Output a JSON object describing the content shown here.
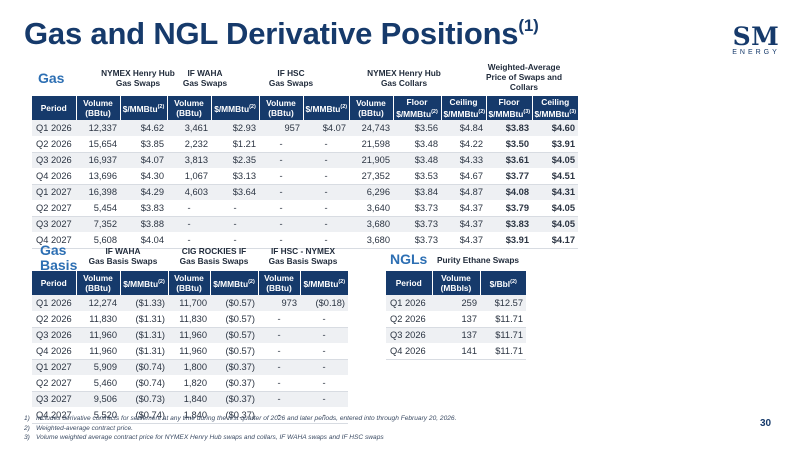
{
  "title": "Gas and NGL Derivative Positions",
  "title_sup": "(1)",
  "logo": {
    "name": "SM",
    "sub": "ENERGY"
  },
  "gas": {
    "label": "Gas",
    "groups": [
      "NYMEX Henry Hub\nGas Swaps",
      "IF WAHA\nGas Swaps",
      "IF HSC\nGas Swaps",
      "NYMEX Henry Hub\nGas Collars",
      "Weighted-Average\nPrice of Swaps and\nCollars"
    ],
    "headers": [
      "Period",
      "Volume\n(BBtu)",
      "$/MMBtu",
      "Volume\n(BBtu)",
      "$/MMBtu",
      "Volume\n(BBtu)",
      "$/MMBtu",
      "Volume\n(BBtu)",
      "Floor\n$/MMBtu",
      "Ceiling\n$/MMBtu",
      "Floor\n$/MMBtu",
      "Ceiling\n$/MMBtu"
    ],
    "header_sups": [
      "",
      "",
      "(2)",
      "",
      "(2)",
      "",
      "(2)",
      "",
      "(2)",
      "(2)",
      "(3)",
      "(3)"
    ],
    "rows": [
      [
        "Q1 2026",
        "12,337",
        "$4.62",
        "3,461",
        "$2.93",
        "957",
        "$4.07",
        "24,743",
        "$3.56",
        "$4.84",
        "$3.83",
        "$4.60"
      ],
      [
        "Q2 2026",
        "15,654",
        "$3.85",
        "2,232",
        "$1.21",
        "-",
        "-",
        "21,598",
        "$3.48",
        "$4.22",
        "$3.50",
        "$3.91"
      ],
      [
        "Q3 2026",
        "16,937",
        "$4.07",
        "3,813",
        "$2.35",
        "-",
        "-",
        "21,905",
        "$3.48",
        "$4.33",
        "$3.61",
        "$4.05"
      ],
      [
        "Q4 2026",
        "13,696",
        "$4.30",
        "1,067",
        "$3.13",
        "-",
        "-",
        "27,352",
        "$3.53",
        "$4.67",
        "$3.77",
        "$4.51"
      ],
      [
        "Q1 2027",
        "16,398",
        "$4.29",
        "4,603",
        "$3.64",
        "-",
        "-",
        "6,296",
        "$3.84",
        "$4.87",
        "$4.08",
        "$4.31"
      ],
      [
        "Q2 2027",
        "5,454",
        "$3.83",
        "-",
        "-",
        "-",
        "-",
        "3,640",
        "$3.73",
        "$4.37",
        "$3.79",
        "$4.05"
      ],
      [
        "Q3 2027",
        "7,352",
        "$3.88",
        "-",
        "-",
        "-",
        "-",
        "3,680",
        "$3.73",
        "$4.37",
        "$3.83",
        "$4.05"
      ],
      [
        "Q4 2027",
        "5,608",
        "$4.04",
        "-",
        "-",
        "-",
        "-",
        "3,680",
        "$3.73",
        "$4.37",
        "$3.91",
        "$4.17"
      ]
    ]
  },
  "gas_basis": {
    "label": "Gas\nBasis",
    "groups": [
      "IF WAHA\nGas Basis Swaps",
      "CIG ROCKIES IF\nGas Basis Swaps",
      "IF HSC - NYMEX\nGas Basis Swaps"
    ],
    "headers": [
      "Period",
      "Volume\n(BBtu)",
      "$/MMBtu",
      "Volume\n(BBtu)",
      "$/MMBtu",
      "Volume\n(BBtu)",
      "$/MMBtu"
    ],
    "header_sups": [
      "",
      "",
      "(2)",
      "",
      "(2)",
      "",
      "(2)"
    ],
    "rows": [
      [
        "Q1 2026",
        "12,274",
        "($1.33)",
        "11,700",
        "($0.57)",
        "973",
        "($0.18)"
      ],
      [
        "Q2 2026",
        "11,830",
        "($1.31)",
        "11,830",
        "($0.57)",
        "-",
        "-"
      ],
      [
        "Q3 2026",
        "11,960",
        "($1.31)",
        "11,960",
        "($0.57)",
        "-",
        "-"
      ],
      [
        "Q4 2026",
        "11,960",
        "($1.31)",
        "11,960",
        "($0.57)",
        "-",
        "-"
      ],
      [
        "Q1 2027",
        "5,909",
        "($0.74)",
        "1,800",
        "($0.37)",
        "-",
        "-"
      ],
      [
        "Q2 2027",
        "5,460",
        "($0.74)",
        "1,820",
        "($0.37)",
        "-",
        "-"
      ],
      [
        "Q3 2027",
        "9,506",
        "($0.73)",
        "1,840",
        "($0.37)",
        "-",
        "-"
      ],
      [
        "Q4 2027",
        "5,520",
        "($0.74)",
        "1,840",
        "($0.37)",
        "-",
        "-"
      ]
    ]
  },
  "ngls": {
    "label": "NGLs",
    "groups": [
      "Purity Ethane Swaps"
    ],
    "headers": [
      "Period",
      "Volume\n(MBbls)",
      "$/Bbl"
    ],
    "header_sups": [
      "",
      "",
      "(2)"
    ],
    "rows": [
      [
        "Q1 2026",
        "259",
        "$12.57"
      ],
      [
        "Q2 2026",
        "137",
        "$11.71"
      ],
      [
        "Q3 2026",
        "137",
        "$11.71"
      ],
      [
        "Q4 2026",
        "141",
        "$11.71"
      ]
    ]
  },
  "footnotes": [
    {
      "num": "1)",
      "text": "Includes derivative contracts for settlement at any time during the first quarter of 2026 and later periods, entered into through February 20, 2026."
    },
    {
      "num": "2)",
      "text": "Weighted-average contract price."
    },
    {
      "num": "3)",
      "text": "Volume weighted average contract price for NYMEX Henry Hub swaps and collars, IF WAHA swaps and IF HSC swaps"
    }
  ],
  "page_number": "30"
}
